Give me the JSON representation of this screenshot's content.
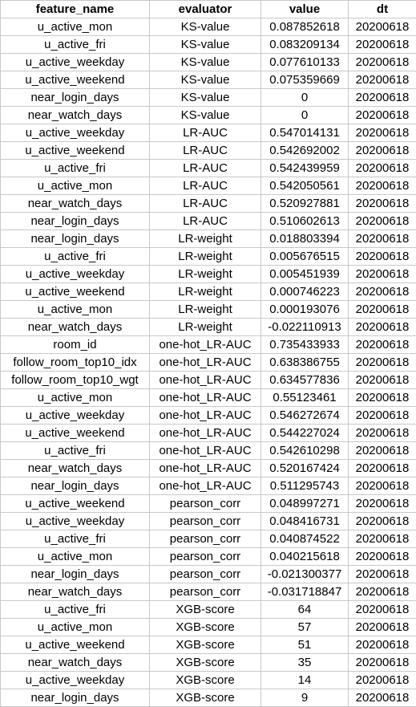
{
  "headers": [
    "feature_name",
    "evaluator",
    "value",
    "dt"
  ],
  "rows": [
    [
      "u_active_mon",
      "KS-value",
      "0.087852618",
      "20200618"
    ],
    [
      "u_active_fri",
      "KS-value",
      "0.083209134",
      "20200618"
    ],
    [
      "u_active_weekday",
      "KS-value",
      "0.077610133",
      "20200618"
    ],
    [
      "u_active_weekend",
      "KS-value",
      "0.075359669",
      "20200618"
    ],
    [
      "near_login_days",
      "KS-value",
      "0",
      "20200618"
    ],
    [
      "near_watch_days",
      "KS-value",
      "0",
      "20200618"
    ],
    [
      "u_active_weekday",
      "LR-AUC",
      "0.547014131",
      "20200618"
    ],
    [
      "u_active_weekend",
      "LR-AUC",
      "0.542692002",
      "20200618"
    ],
    [
      "u_active_fri",
      "LR-AUC",
      "0.542439959",
      "20200618"
    ],
    [
      "u_active_mon",
      "LR-AUC",
      "0.542050561",
      "20200618"
    ],
    [
      "near_watch_days",
      "LR-AUC",
      "0.520927881",
      "20200618"
    ],
    [
      "near_login_days",
      "LR-AUC",
      "0.510602613",
      "20200618"
    ],
    [
      "near_login_days",
      "LR-weight",
      "0.018803394",
      "20200618"
    ],
    [
      "u_active_fri",
      "LR-weight",
      "0.005676515",
      "20200618"
    ],
    [
      "u_active_weekday",
      "LR-weight",
      "0.005451939",
      "20200618"
    ],
    [
      "u_active_weekend",
      "LR-weight",
      "0.000746223",
      "20200618"
    ],
    [
      "u_active_mon",
      "LR-weight",
      "0.000193076",
      "20200618"
    ],
    [
      "near_watch_days",
      "LR-weight",
      "-0.022110913",
      "20200618"
    ],
    [
      "room_id",
      "one-hot_LR-AUC",
      "0.735433933",
      "20200618"
    ],
    [
      "follow_room_top10_idx",
      "one-hot_LR-AUC",
      "0.638386755",
      "20200618"
    ],
    [
      "follow_room_top10_wgt",
      "one-hot_LR-AUC",
      "0.634577836",
      "20200618"
    ],
    [
      "u_active_mon",
      "one-hot_LR-AUC",
      "0.55123461",
      "20200618"
    ],
    [
      "u_active_weekday",
      "one-hot_LR-AUC",
      "0.546272674",
      "20200618"
    ],
    [
      "u_active_weekend",
      "one-hot_LR-AUC",
      "0.544227024",
      "20200618"
    ],
    [
      "u_active_fri",
      "one-hot_LR-AUC",
      "0.542610298",
      "20200618"
    ],
    [
      "near_watch_days",
      "one-hot_LR-AUC",
      "0.520167424",
      "20200618"
    ],
    [
      "near_login_days",
      "one-hot_LR-AUC",
      "0.511295743",
      "20200618"
    ],
    [
      "u_active_weekend",
      "pearson_corr",
      "0.048997271",
      "20200618"
    ],
    [
      "u_active_weekday",
      "pearson_corr",
      "0.048416731",
      "20200618"
    ],
    [
      "u_active_fri",
      "pearson_corr",
      "0.040874522",
      "20200618"
    ],
    [
      "u_active_mon",
      "pearson_corr",
      "0.040215618",
      "20200618"
    ],
    [
      "near_login_days",
      "pearson_corr",
      "-0.021300377",
      "20200618"
    ],
    [
      "near_watch_days",
      "pearson_corr",
      "-0.031718847",
      "20200618"
    ],
    [
      "u_active_fri",
      "XGB-score",
      "64",
      "20200618"
    ],
    [
      "u_active_mon",
      "XGB-score",
      "57",
      "20200618"
    ],
    [
      "u_active_weekend",
      "XGB-score",
      "51",
      "20200618"
    ],
    [
      "near_watch_days",
      "XGB-score",
      "35",
      "20200618"
    ],
    [
      "u_active_weekday",
      "XGB-score",
      "14",
      "20200618"
    ],
    [
      "near_login_days",
      "XGB-score",
      "9",
      "20200618"
    ]
  ]
}
